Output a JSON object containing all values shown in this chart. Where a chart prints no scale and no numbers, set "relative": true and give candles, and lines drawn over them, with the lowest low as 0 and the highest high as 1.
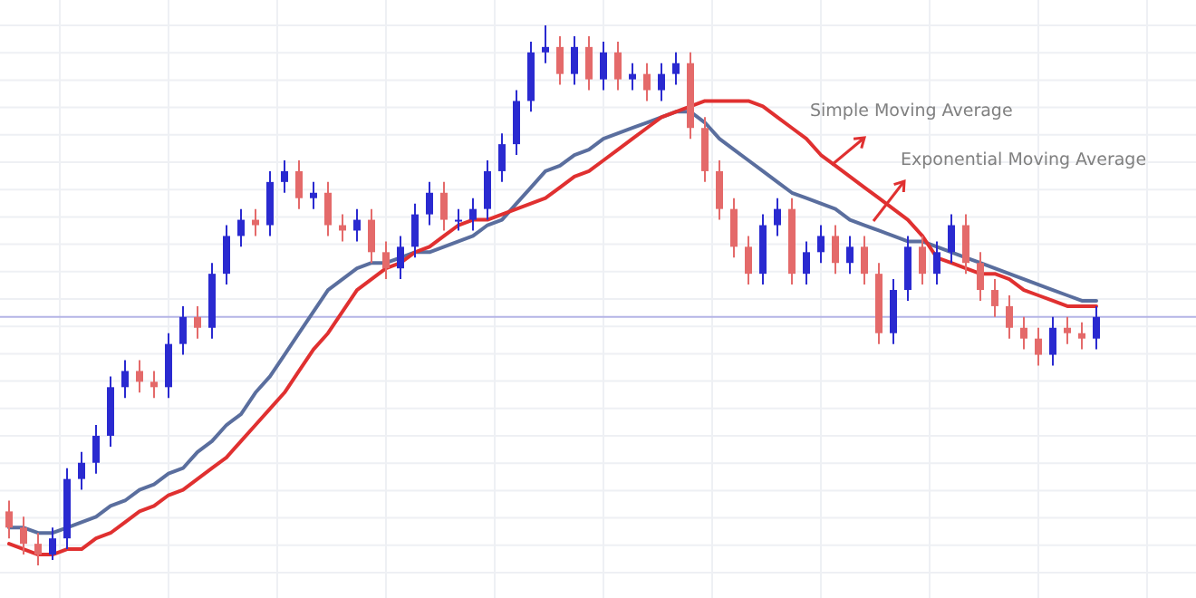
{
  "chart_data": {
    "type": "candlestick",
    "relative": true,
    "grid": true,
    "categories": [
      null,
      null,
      null,
      null,
      null,
      null,
      null,
      null,
      null,
      null,
      null,
      null,
      null,
      null,
      null,
      null,
      null,
      null,
      null,
      null,
      null,
      null,
      null,
      null,
      null,
      null,
      null,
      null,
      null,
      null,
      null,
      null,
      null,
      null,
      null,
      null,
      null,
      null,
      null,
      null,
      null,
      null,
      null,
      null,
      null,
      null,
      null,
      null,
      null,
      null,
      null,
      null,
      null,
      null,
      null,
      null,
      null,
      null,
      null,
      null,
      null,
      null,
      null,
      null,
      null,
      null,
      null,
      null,
      null,
      null,
      null,
      null,
      null,
      null,
      null,
      null
    ],
    "ohlc": [
      [
        0.1,
        0.12,
        0.05,
        0.07
      ],
      [
        0.07,
        0.09,
        0.02,
        0.04
      ],
      [
        0.04,
        0.06,
        0.0,
        0.02
      ],
      [
        0.02,
        0.07,
        0.01,
        0.05
      ],
      [
        0.05,
        0.18,
        0.03,
        0.16
      ],
      [
        0.16,
        0.21,
        0.14,
        0.19
      ],
      [
        0.19,
        0.26,
        0.17,
        0.24
      ],
      [
        0.24,
        0.35,
        0.22,
        0.33
      ],
      [
        0.33,
        0.38,
        0.31,
        0.36
      ],
      [
        0.36,
        0.38,
        0.32,
        0.34
      ],
      [
        0.34,
        0.36,
        0.31,
        0.33
      ],
      [
        0.33,
        0.43,
        0.31,
        0.41
      ],
      [
        0.41,
        0.48,
        0.39,
        0.46
      ],
      [
        0.46,
        0.48,
        0.42,
        0.44
      ],
      [
        0.44,
        0.56,
        0.42,
        0.54
      ],
      [
        0.54,
        0.63,
        0.52,
        0.61
      ],
      [
        0.61,
        0.66,
        0.59,
        0.64
      ],
      [
        0.64,
        0.66,
        0.61,
        0.63
      ],
      [
        0.63,
        0.73,
        0.61,
        0.71
      ],
      [
        0.71,
        0.75,
        0.69,
        0.73
      ],
      [
        0.73,
        0.75,
        0.66,
        0.68
      ],
      [
        0.68,
        0.71,
        0.66,
        0.69
      ],
      [
        0.69,
        0.71,
        0.61,
        0.63
      ],
      [
        0.63,
        0.65,
        0.6,
        0.62
      ],
      [
        0.62,
        0.66,
        0.6,
        0.64
      ],
      [
        0.64,
        0.66,
        0.56,
        0.58
      ],
      [
        0.58,
        0.6,
        0.53,
        0.55
      ],
      [
        0.55,
        0.61,
        0.53,
        0.59
      ],
      [
        0.59,
        0.67,
        0.57,
        0.65
      ],
      [
        0.65,
        0.71,
        0.63,
        0.69
      ],
      [
        0.69,
        0.71,
        0.62,
        0.64
      ],
      [
        0.64,
        0.66,
        0.62,
        0.64
      ],
      [
        0.64,
        0.68,
        0.62,
        0.66
      ],
      [
        0.66,
        0.75,
        0.64,
        0.73
      ],
      [
        0.73,
        0.8,
        0.71,
        0.78
      ],
      [
        0.78,
        0.88,
        0.76,
        0.86
      ],
      [
        0.86,
        0.97,
        0.84,
        0.95
      ],
      [
        0.95,
        1.0,
        0.93,
        0.96
      ],
      [
        0.96,
        0.98,
        0.89,
        0.91
      ],
      [
        0.91,
        0.98,
        0.89,
        0.96
      ],
      [
        0.96,
        0.98,
        0.88,
        0.9
      ],
      [
        0.9,
        0.97,
        0.88,
        0.95
      ],
      [
        0.95,
        0.97,
        0.88,
        0.9
      ],
      [
        0.9,
        0.93,
        0.88,
        0.91
      ],
      [
        0.91,
        0.93,
        0.86,
        0.88
      ],
      [
        0.88,
        0.93,
        0.86,
        0.91
      ],
      [
        0.91,
        0.95,
        0.89,
        0.93
      ],
      [
        0.93,
        0.95,
        0.79,
        0.81
      ],
      [
        0.81,
        0.83,
        0.71,
        0.73
      ],
      [
        0.73,
        0.75,
        0.64,
        0.66
      ],
      [
        0.66,
        0.68,
        0.57,
        0.59
      ],
      [
        0.59,
        0.61,
        0.52,
        0.54
      ],
      [
        0.54,
        0.65,
        0.52,
        0.63
      ],
      [
        0.63,
        0.68,
        0.61,
        0.66
      ],
      [
        0.66,
        0.68,
        0.52,
        0.54
      ],
      [
        0.54,
        0.6,
        0.52,
        0.58
      ],
      [
        0.58,
        0.63,
        0.56,
        0.61
      ],
      [
        0.61,
        0.63,
        0.54,
        0.56
      ],
      [
        0.56,
        0.61,
        0.54,
        0.59
      ],
      [
        0.59,
        0.61,
        0.52,
        0.54
      ],
      [
        0.54,
        0.56,
        0.41,
        0.43
      ],
      [
        0.43,
        0.53,
        0.41,
        0.51
      ],
      [
        0.51,
        0.61,
        0.49,
        0.59
      ],
      [
        0.59,
        0.61,
        0.52,
        0.54
      ],
      [
        0.54,
        0.6,
        0.52,
        0.58
      ],
      [
        0.58,
        0.65,
        0.56,
        0.63
      ],
      [
        0.63,
        0.65,
        0.54,
        0.56
      ],
      [
        0.56,
        0.58,
        0.49,
        0.51
      ],
      [
        0.51,
        0.53,
        0.46,
        0.48
      ],
      [
        0.48,
        0.5,
        0.42,
        0.44
      ],
      [
        0.44,
        0.46,
        0.4,
        0.42
      ],
      [
        0.42,
        0.44,
        0.37,
        0.39
      ],
      [
        0.39,
        0.46,
        0.37,
        0.44
      ],
      [
        0.44,
        0.46,
        0.41,
        0.43
      ],
      [
        0.43,
        0.45,
        0.4,
        0.42
      ],
      [
        0.42,
        0.48,
        0.4,
        0.46
      ]
    ],
    "series": [
      {
        "type": "line",
        "color": "#e03030",
        "values": [
          0.04,
          0.03,
          0.02,
          0.02,
          0.03,
          0.03,
          0.05,
          0.06,
          0.08,
          0.1,
          0.11,
          0.13,
          0.14,
          0.16,
          0.18,
          0.2,
          0.23,
          0.26,
          0.29,
          0.32,
          0.36,
          0.4,
          0.43,
          0.47,
          0.51,
          0.53,
          0.55,
          0.56,
          0.58,
          0.59,
          0.61,
          0.63,
          0.64,
          0.64,
          0.65,
          0.66,
          0.67,
          0.68,
          0.7,
          0.72,
          0.73,
          0.75,
          0.77,
          0.79,
          0.81,
          0.83,
          0.84,
          0.85,
          0.86,
          0.86,
          0.86,
          0.86,
          0.85,
          0.83,
          0.81,
          0.79,
          0.76,
          0.74,
          0.72,
          0.7,
          0.68,
          0.66,
          0.64,
          0.61,
          0.57,
          0.56,
          0.55,
          0.54,
          0.54,
          0.53,
          0.51,
          0.5,
          0.49,
          0.48,
          0.48,
          0.48
        ]
      },
      {
        "type": "line",
        "color": "#5a6e9e",
        "values": [
          0.07,
          0.07,
          0.06,
          0.06,
          0.07,
          0.08,
          0.09,
          0.11,
          0.12,
          0.14,
          0.15,
          0.17,
          0.18,
          0.21,
          0.23,
          0.26,
          0.28,
          0.32,
          0.35,
          0.39,
          0.43,
          0.47,
          0.51,
          0.53,
          0.55,
          0.56,
          0.56,
          0.57,
          0.58,
          0.58,
          0.59,
          0.6,
          0.61,
          0.63,
          0.64,
          0.67,
          0.7,
          0.73,
          0.74,
          0.76,
          0.77,
          0.79,
          0.8,
          0.81,
          0.82,
          0.83,
          0.84,
          0.84,
          0.82,
          0.79,
          0.77,
          0.75,
          0.73,
          0.71,
          0.69,
          0.68,
          0.67,
          0.66,
          0.64,
          0.63,
          0.62,
          0.61,
          0.6,
          0.6,
          0.59,
          0.58,
          0.57,
          0.56,
          0.55,
          0.54,
          0.53,
          0.52,
          0.51,
          0.5,
          0.49,
          0.49
        ]
      }
    ],
    "ref_lines": [
      {
        "axis": "y",
        "value": 0.46,
        "color": "#b4b4e6"
      }
    ],
    "annotations": [
      "Simple Moving Average",
      "Exponential Moving Average"
    ]
  }
}
